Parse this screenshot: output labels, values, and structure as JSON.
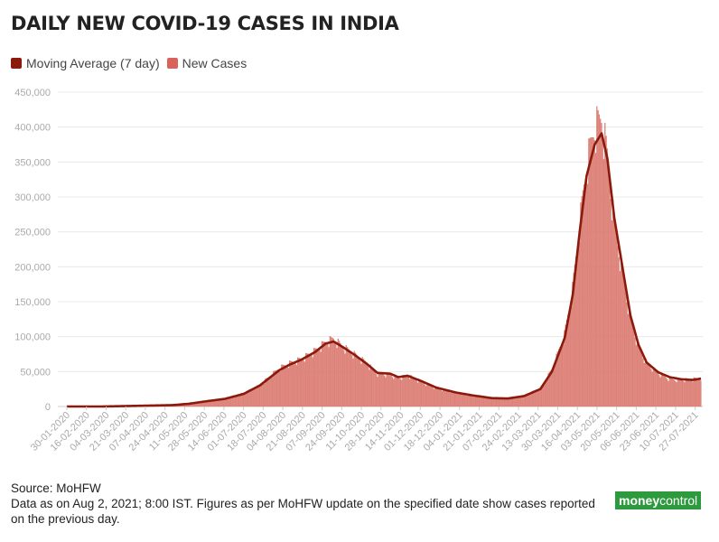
{
  "title": "DAILY NEW COVID-19 CASES IN INDIA",
  "legend": [
    {
      "label": "Moving Average (7 day)",
      "color": "#8b1a0c"
    },
    {
      "label": "New Cases",
      "color": "#d9635a"
    }
  ],
  "footer": {
    "source": "Source: MoHFW",
    "note": "Data as on Aug 2, 2021; 8:00 IST. Figures as per MoHFW update on the specified date show cases reported on the previous day."
  },
  "logo": {
    "part1": "money",
    "part2": "control"
  },
  "colors": {
    "bar": "#e0847b",
    "bar_stroke": "#c65a50",
    "line": "#8b1a0c",
    "grid": "#e8e8e8",
    "axis_text": "#aaaaaa"
  },
  "chart_data": {
    "type": "bar",
    "title": "DAILY NEW COVID-19 CASES IN INDIA",
    "ylim": [
      0,
      450000
    ],
    "y_ticks": [
      "0",
      "50,000",
      "100,000",
      "150,000",
      "200,000",
      "250,000",
      "300,000",
      "350,000",
      "400,000",
      "450,000"
    ],
    "x_tick_labels": [
      "30-01-2020",
      "16-02-2020",
      "04-03-2020",
      "21-03-2020",
      "07-04-2020",
      "24-04-2020",
      "11-05-2020",
      "28-05-2020",
      "14-06-2020",
      "01-07-2020",
      "18-07-2020",
      "04-08-2020",
      "21-08-2020",
      "07-09-2020",
      "24-09-2020",
      "11-10-2020",
      "28-10-2020",
      "14-11-2020",
      "01-12-2020",
      "18-12-2020",
      "04-01-2021",
      "21-01-2021",
      "07-02-2021",
      "24-02-2021",
      "13-03-2021",
      "30-03-2021",
      "16-04-2021",
      "03-05-2021",
      "20-05-2021",
      "06-06-2021",
      "23-06-2021",
      "10-07-2021",
      "27-07-2021"
    ],
    "x_start": "2020-01-30",
    "x_end": "2021-08-01",
    "grid": true,
    "legend_position": "top-left",
    "series": [
      {
        "name": "New Cases",
        "type": "bar",
        "points": [
          [
            "2020-01-30",
            0
          ],
          [
            "2020-03-01",
            0
          ],
          [
            "2020-04-01",
            1500
          ],
          [
            "2020-05-01",
            2000
          ],
          [
            "2020-05-15",
            4000
          ],
          [
            "2020-06-01",
            8500
          ],
          [
            "2020-06-15",
            11500
          ],
          [
            "2020-07-01",
            19000
          ],
          [
            "2020-07-15",
            30000
          ],
          [
            "2020-08-01",
            55000
          ],
          [
            "2020-08-10",
            62000
          ],
          [
            "2020-08-20",
            68000
          ],
          [
            "2020-09-01",
            80000
          ],
          [
            "2020-09-10",
            92000
          ],
          [
            "2020-09-17",
            97000
          ],
          [
            "2020-09-25",
            86000
          ],
          [
            "2020-10-05",
            75000
          ],
          [
            "2020-10-15",
            63000
          ],
          [
            "2020-10-25",
            47000
          ],
          [
            "2020-11-05",
            46000
          ],
          [
            "2020-11-12",
            40000
          ],
          [
            "2020-11-20",
            45000
          ],
          [
            "2020-12-01",
            36000
          ],
          [
            "2020-12-15",
            26000
          ],
          [
            "2021-01-01",
            20000
          ],
          [
            "2021-01-15",
            15500
          ],
          [
            "2021-02-01",
            12000
          ],
          [
            "2021-02-15",
            11500
          ],
          [
            "2021-03-01",
            15500
          ],
          [
            "2021-03-15",
            26000
          ],
          [
            "2021-03-25",
            53000
          ],
          [
            "2021-04-05",
            103000
          ],
          [
            "2021-04-12",
            168000
          ],
          [
            "2021-04-18",
            261000
          ],
          [
            "2021-04-24",
            346000
          ],
          [
            "2021-05-01",
            401000
          ],
          [
            "2021-05-07",
            414000
          ],
          [
            "2021-05-12",
            362000
          ],
          [
            "2021-05-18",
            263000
          ],
          [
            "2021-05-25",
            196000
          ],
          [
            "2021-06-01",
            127000
          ],
          [
            "2021-06-08",
            86000
          ],
          [
            "2021-06-15",
            62000
          ],
          [
            "2021-06-25",
            48000
          ],
          [
            "2021-07-05",
            39000
          ],
          [
            "2021-07-15",
            38000
          ],
          [
            "2021-07-25",
            39000
          ],
          [
            "2021-08-01",
            41000
          ]
        ]
      },
      {
        "name": "Moving Average (7 day)",
        "type": "line",
        "points": [
          [
            "2020-01-30",
            0
          ],
          [
            "2020-03-01",
            0
          ],
          [
            "2020-04-01",
            1000
          ],
          [
            "2020-05-01",
            2000
          ],
          [
            "2020-05-15",
            4000
          ],
          [
            "2020-06-01",
            8000
          ],
          [
            "2020-06-15",
            11000
          ],
          [
            "2020-07-01",
            18000
          ],
          [
            "2020-07-15",
            30000
          ],
          [
            "2020-08-01",
            52000
          ],
          [
            "2020-08-10",
            60000
          ],
          [
            "2020-08-20",
            67000
          ],
          [
            "2020-09-01",
            78000
          ],
          [
            "2020-09-10",
            90000
          ],
          [
            "2020-09-17",
            93000
          ],
          [
            "2020-09-25",
            85000
          ],
          [
            "2020-10-05",
            74000
          ],
          [
            "2020-10-15",
            62000
          ],
          [
            "2020-10-25",
            48000
          ],
          [
            "2020-11-05",
            47000
          ],
          [
            "2020-11-12",
            42000
          ],
          [
            "2020-11-20",
            44000
          ],
          [
            "2020-12-01",
            37000
          ],
          [
            "2020-12-15",
            27000
          ],
          [
            "2021-01-01",
            20000
          ],
          [
            "2021-01-15",
            16000
          ],
          [
            "2021-02-01",
            12000
          ],
          [
            "2021-02-15",
            11500
          ],
          [
            "2021-03-01",
            15000
          ],
          [
            "2021-03-15",
            25000
          ],
          [
            "2021-03-25",
            50000
          ],
          [
            "2021-04-05",
            98000
          ],
          [
            "2021-04-12",
            160000
          ],
          [
            "2021-04-18",
            250000
          ],
          [
            "2021-04-24",
            330000
          ],
          [
            "2021-05-01",
            375000
          ],
          [
            "2021-05-07",
            391000
          ],
          [
            "2021-05-12",
            355000
          ],
          [
            "2021-05-18",
            270000
          ],
          [
            "2021-05-25",
            200000
          ],
          [
            "2021-06-01",
            130000
          ],
          [
            "2021-06-08",
            88000
          ],
          [
            "2021-06-15",
            63000
          ],
          [
            "2021-06-25",
            49000
          ],
          [
            "2021-07-05",
            42000
          ],
          [
            "2021-07-15",
            39000
          ],
          [
            "2021-07-25",
            38000
          ],
          [
            "2021-08-01",
            40000
          ]
        ]
      }
    ]
  }
}
